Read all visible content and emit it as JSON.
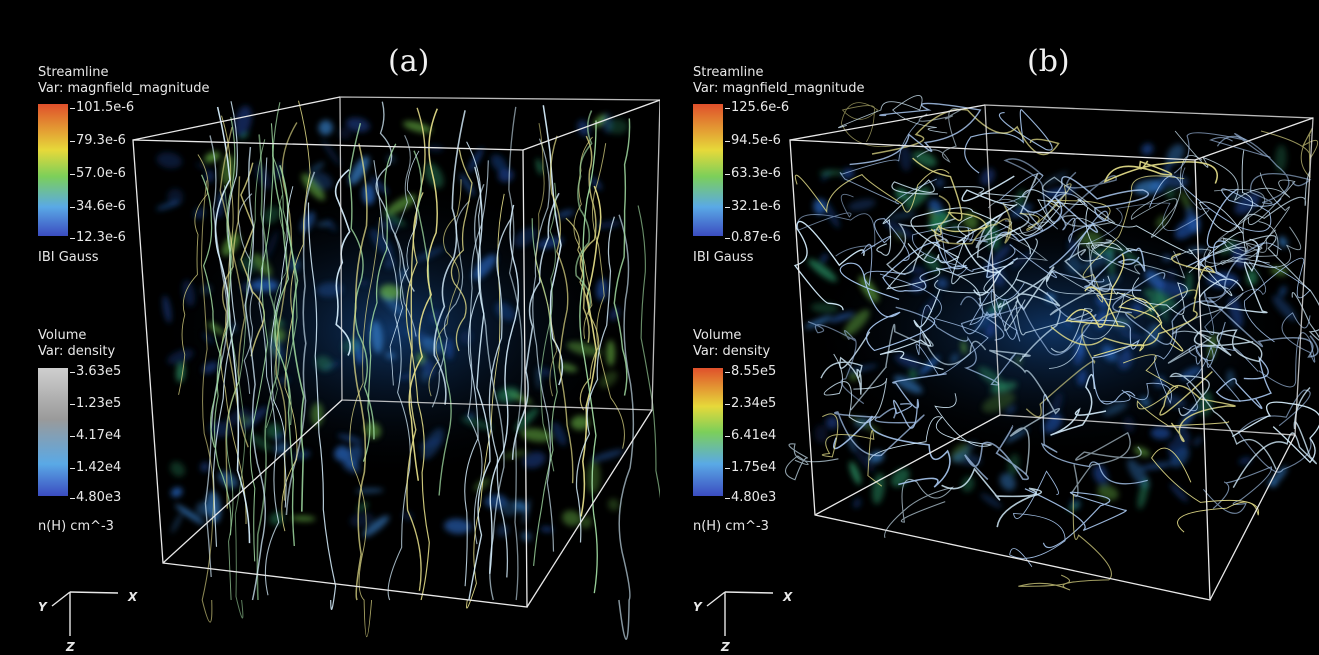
{
  "panels": [
    {
      "label": "(a)",
      "streamline": {
        "title": "Streamline",
        "var": "Var: magnfield_magnitude",
        "ticks": [
          "101.5e-6",
          "79.3e-6",
          "57.0e-6",
          "34.6e-6",
          "12.3e-6"
        ],
        "unit": "IBI Gauss"
      },
      "volume": {
        "title": "Volume",
        "var": "Var: density",
        "ticks": [
          "3.63e5",
          "1.23e5",
          "4.17e4",
          "1.42e4",
          "4.80e3"
        ],
        "unit": "n(H) cm^-3"
      },
      "axes": {
        "x": "X",
        "y": "Y",
        "z": "Z"
      }
    },
    {
      "label": "(b)",
      "streamline": {
        "title": "Streamline",
        "var": "Var: magnfield_magnitude",
        "ticks": [
          "125.6e-6",
          "94.5e-6",
          "63.3e-6",
          "32.1e-6",
          "0.87e-6"
        ],
        "unit": "IBI Gauss"
      },
      "volume": {
        "title": "Volume",
        "var": "Var: density",
        "ticks": [
          "8.55e5",
          "2.34e5",
          "6.41e4",
          "1.75e4",
          "4.80e3"
        ],
        "unit": "n(H) cm^-3"
      },
      "axes": {
        "x": "X",
        "y": "Y",
        "z": "Z"
      }
    }
  ],
  "colors": {
    "colormap": [
      "#3b4cc0",
      "#5aa9e6",
      "#7ccf5a",
      "#e6d93a",
      "#e0502b"
    ],
    "box": "#e8e8e8",
    "streamline_a": "#9fd9a0",
    "streamline_b": "#a9c8f0",
    "density_glow": "#1c5fb5"
  }
}
